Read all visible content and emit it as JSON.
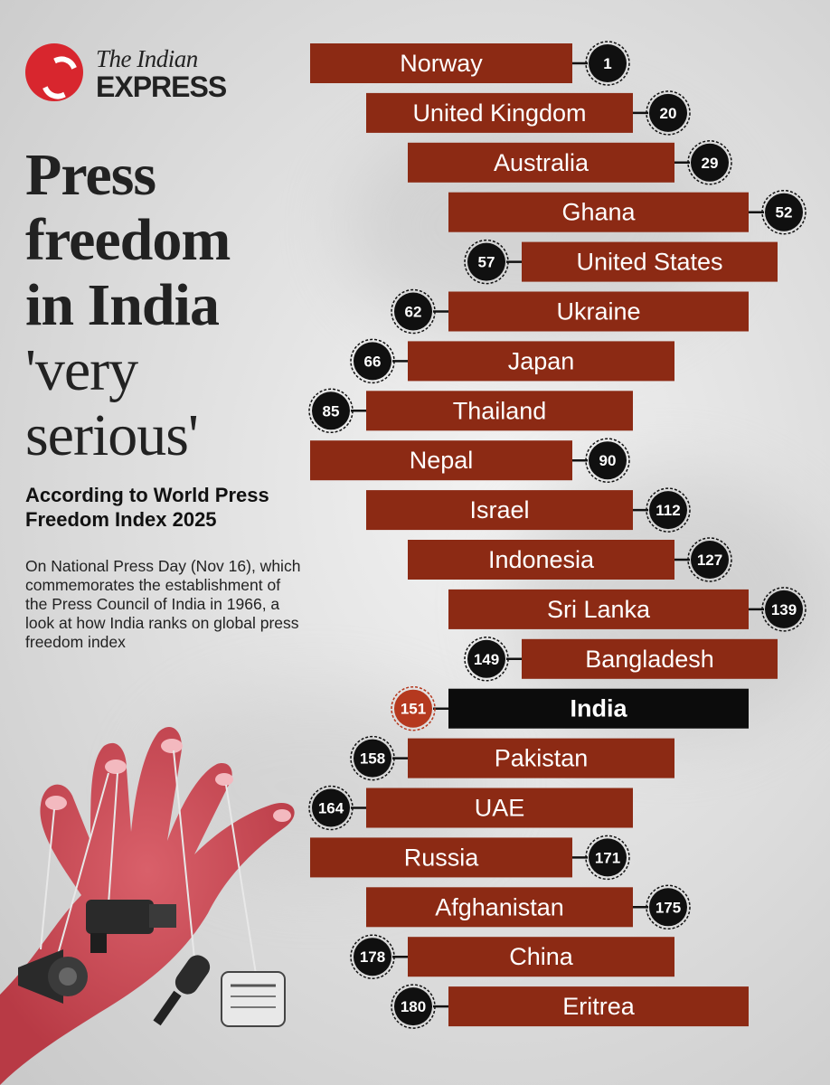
{
  "brand": {
    "line1": "The Indian",
    "line2": "EXPRESS"
  },
  "headline": {
    "line1": "Press",
    "line2": "freedom",
    "line3": "in India",
    "line4": "'very",
    "line5": "serious'"
  },
  "subtitle": "According to World Press Freedom Index 2025",
  "description": "On National Press Day (Nov 16), which commemorates the establishment of the Press Council of India in 1966, a look at how India ranks on global press freedom index",
  "colors": {
    "bar": "#8c2a14",
    "highlight_bar": "#0c0c0c",
    "badge": "#101010",
    "highlight_badge": "#b5391f",
    "brand_red": "#d8262e"
  },
  "illustration": {
    "icons": [
      "hand-icon",
      "camera-icon",
      "microphone-icon",
      "megaphone-icon",
      "newspaper-icon"
    ]
  },
  "chart_data": {
    "type": "table",
    "columns": [
      "country",
      "rank"
    ],
    "highlight": "India",
    "rows": [
      {
        "country": "Norway",
        "rank": 1
      },
      {
        "country": "United Kingdom",
        "rank": 20
      },
      {
        "country": "Australia",
        "rank": 29
      },
      {
        "country": "Ghana",
        "rank": 52
      },
      {
        "country": "United States",
        "rank": 57
      },
      {
        "country": "Ukraine",
        "rank": 62
      },
      {
        "country": "Japan",
        "rank": 66
      },
      {
        "country": "Thailand",
        "rank": 85
      },
      {
        "country": "Nepal",
        "rank": 90
      },
      {
        "country": "Israel",
        "rank": 112
      },
      {
        "country": "Indonesia",
        "rank": 127
      },
      {
        "country": "Sri Lanka",
        "rank": 139
      },
      {
        "country": "Bangladesh",
        "rank": 149
      },
      {
        "country": "India",
        "rank": 151
      },
      {
        "country": "Pakistan",
        "rank": 158
      },
      {
        "country": "UAE",
        "rank": 164
      },
      {
        "country": "Russia",
        "rank": 171
      },
      {
        "country": "Afghanistan",
        "rank": 175
      },
      {
        "country": "China",
        "rank": 178
      },
      {
        "country": "Eritrea",
        "rank": 180
      }
    ]
  }
}
